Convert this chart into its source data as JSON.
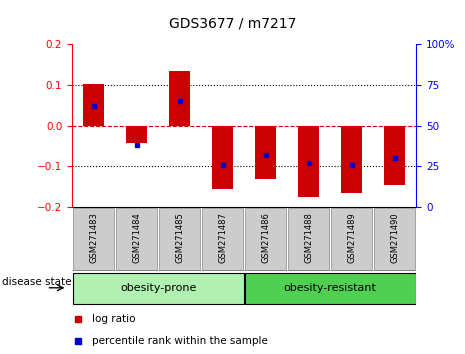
{
  "title": "GDS3677 / m7217",
  "samples": [
    "GSM271483",
    "GSM271484",
    "GSM271485",
    "GSM271487",
    "GSM271486",
    "GSM271488",
    "GSM271489",
    "GSM271490"
  ],
  "log_ratios": [
    0.102,
    -0.043,
    0.135,
    -0.155,
    -0.13,
    -0.175,
    -0.165,
    -0.145
  ],
  "percentile_ranks": [
    62,
    38,
    65,
    26,
    32,
    27,
    26,
    30
  ],
  "groups": [
    {
      "label": "obesity-prone",
      "indices": [
        0,
        1,
        2,
        3
      ],
      "color": "#b0f0b0"
    },
    {
      "label": "obesity-resistant",
      "indices": [
        4,
        5,
        6,
        7
      ],
      "color": "#50d050"
    }
  ],
  "ylim": [
    -0.2,
    0.2
  ],
  "yticks_left": [
    -0.2,
    -0.1,
    0,
    0.1,
    0.2
  ],
  "yticks_right": [
    0,
    25,
    50,
    75,
    100
  ],
  "bar_color": "#CC0000",
  "dot_color": "#0000CC",
  "hline_color": "#CC0000",
  "grid_color": "#333333",
  "sample_box_color": "#cccccc",
  "disease_state_label": "disease state",
  "legend_log_ratio": "log ratio",
  "legend_percentile": "percentile rank within the sample",
  "bar_width": 0.5
}
